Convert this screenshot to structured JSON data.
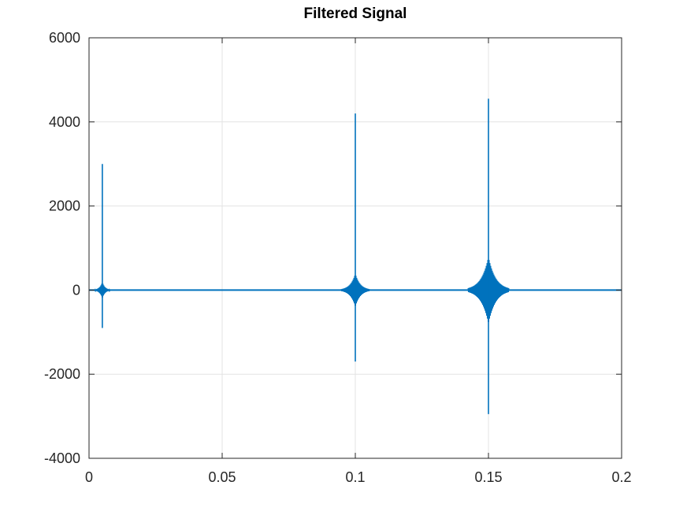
{
  "chart_data": {
    "type": "line",
    "title": "Filtered Signal",
    "xlabel": "",
    "ylabel": "",
    "xlim": [
      0,
      0.2
    ],
    "ylim": [
      -4000,
      6000
    ],
    "xticks": [
      0,
      0.05,
      0.1,
      0.15,
      0.2
    ],
    "xtick_labels": [
      "0",
      "0.05",
      "0.1",
      "0.15",
      "0.2"
    ],
    "yticks": [
      -4000,
      -2000,
      0,
      2000,
      4000,
      6000
    ],
    "ytick_labels": [
      "-4000",
      "-2000",
      "0",
      "2000",
      "4000",
      "6000"
    ],
    "grid": true,
    "legend": false,
    "line_color": "#0072bd",
    "bursts": [
      {
        "x": 0.005,
        "peak": 3000,
        "trough": -900,
        "ring_amplitude": 200
      },
      {
        "x": 0.1,
        "peak": 4200,
        "trough": -1700,
        "ring_amplitude": 400
      },
      {
        "x": 0.15,
        "peak": 4550,
        "trough": -2950,
        "ring_amplitude": 800
      }
    ],
    "baseline": 0
  }
}
